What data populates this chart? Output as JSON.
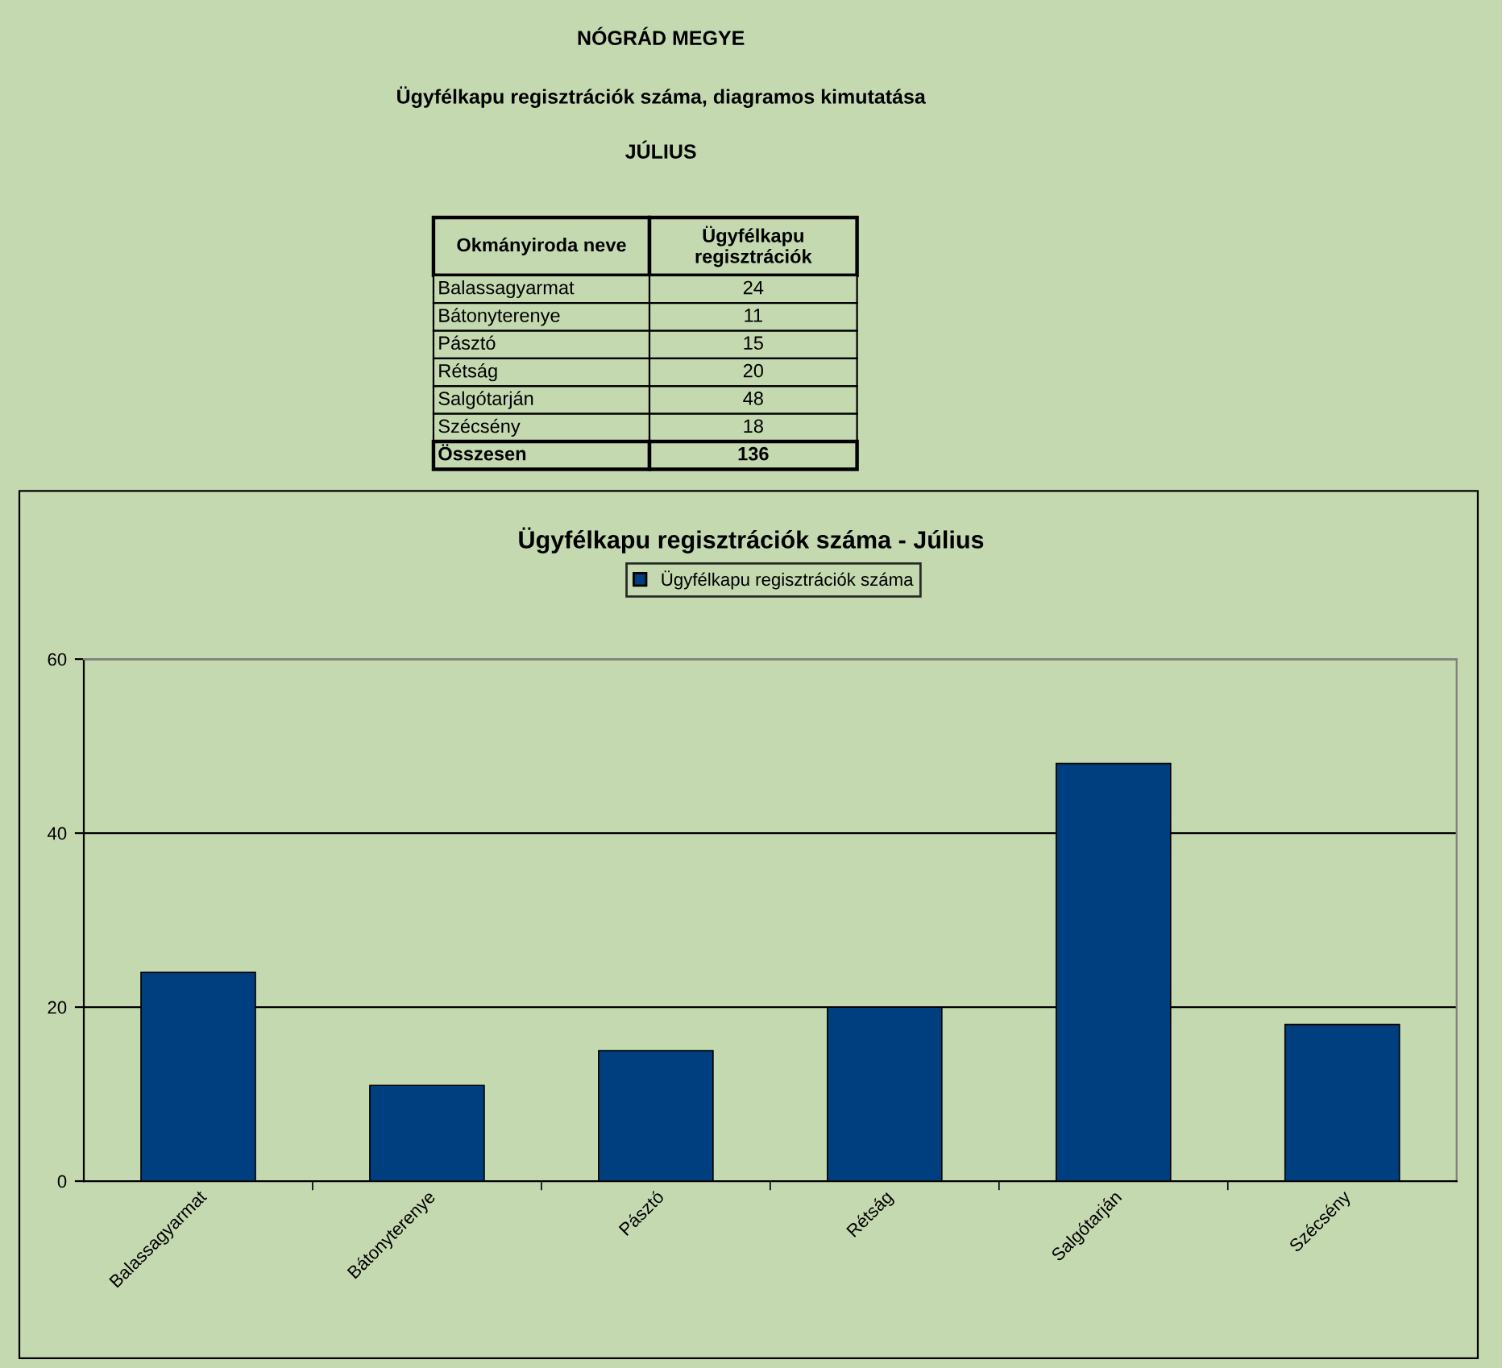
{
  "chart_data": [
    {
      "type": "other",
      "title": "NÓGRÁD MEGYE",
      "subtitle": "Ügyfélkapu regisztrációk száma, diagramos kimutatása",
      "annotations": [
        "JÚLIUS",
        "Okmányiroda neve",
        "Ügyfélkapu\nregisztrációk",
        "Összesen",
        "136",
        "24",
        "11",
        "15",
        "20",
        "48",
        "18"
      ],
      "categories": [
        "Balassagyarmat",
        "Bátonyterenye",
        "Pásztó",
        "Rétság",
        "Salgótarján",
        "Szécsény"
      ]
    },
    {
      "type": "bar",
      "title": "Ügyfélkapu regisztrációk száma - Július",
      "categories": [
        "Balassagyarmat",
        "Bátonyterenye",
        "Pásztó",
        "Rétság",
        "Salgótarján",
        "Szécsény"
      ],
      "series": [
        {
          "name": "Ügyfélkapu regisztrációk száma",
          "color": "#003f7f",
          "values": [
            24,
            11,
            15,
            20,
            48,
            18
          ]
        }
      ],
      "ylim": [
        0,
        60
      ],
      "yticks": [
        0,
        20,
        40,
        60
      ],
      "grid": "y",
      "legend": "top"
    }
  ]
}
